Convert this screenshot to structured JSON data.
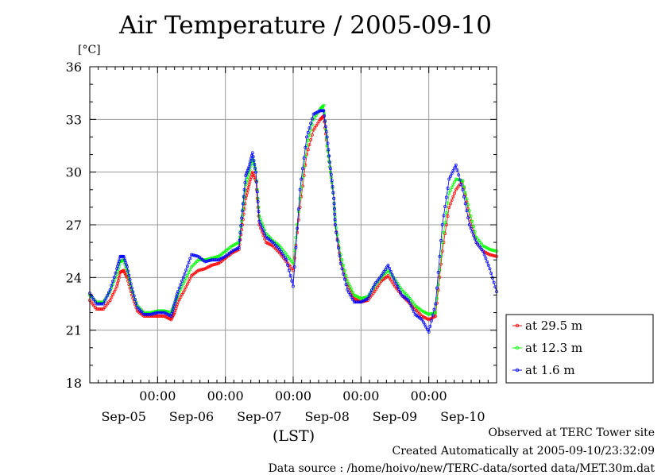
{
  "title": "Air Temperature / 2005-09-10",
  "unit_label": "[°C]",
  "xlabel": "(LST)",
  "footer": {
    "line1": "Observed at TERC Tower site",
    "line2": "Created Automatically at 2005-09-10/23:32:09",
    "line3": "Data source : /home/hoivo/new/TERC-data/sorted  data/MET.30m.dat"
  },
  "chart_data": {
    "type": "line",
    "title": "Air Temperature / 2005-09-10",
    "xlabel": "(LST)",
    "ylabel": "[°C]",
    "ylim": [
      18,
      36
    ],
    "yticks": [
      18,
      21,
      24,
      27,
      30,
      33,
      36
    ],
    "xlim_days": [
      0,
      6
    ],
    "day_labels": [
      "Sep-05",
      "Sep-06",
      "Sep-07",
      "Sep-08",
      "Sep-09",
      "Sep-10"
    ],
    "midnight_labels": [
      "00:00",
      "00:00",
      "00:00",
      "00:00",
      "00:00"
    ],
    "grid": true,
    "legend_position": "right",
    "series": [
      {
        "name": "at 29.5 m",
        "color": "#ff0000",
        "x": [
          0.0,
          0.1,
          0.2,
          0.3,
          0.4,
          0.45,
          0.5,
          0.55,
          0.62,
          0.7,
          0.8,
          0.9,
          1.0,
          1.1,
          1.2,
          1.25,
          1.3,
          1.4,
          1.5,
          1.6,
          1.7,
          1.8,
          1.9,
          2.0,
          2.1,
          2.2,
          2.25,
          2.3,
          2.35,
          2.4,
          2.45,
          2.5,
          2.6,
          2.7,
          2.8,
          2.9,
          3.0,
          3.1,
          3.2,
          3.3,
          3.4,
          3.45,
          3.5,
          3.55,
          3.6,
          3.62,
          3.7,
          3.8,
          3.9,
          4.0,
          4.1,
          4.2,
          4.3,
          4.4,
          4.5,
          4.6,
          4.7,
          4.8,
          4.9,
          5.0,
          5.1,
          5.2,
          5.3,
          5.4,
          5.5,
          5.6,
          5.7,
          5.8,
          5.9,
          6.0
        ],
        "values": [
          22.7,
          22.2,
          22.2,
          22.7,
          23.5,
          24.3,
          24.4,
          24.0,
          23.0,
          22.1,
          21.8,
          21.8,
          21.8,
          21.8,
          21.6,
          22.0,
          22.6,
          23.3,
          24.1,
          24.4,
          24.5,
          24.7,
          24.8,
          25.1,
          25.4,
          25.6,
          27.0,
          28.5,
          29.3,
          30.0,
          29.5,
          27.0,
          26.0,
          25.8,
          25.4,
          24.9,
          24.4,
          28.0,
          31.0,
          32.4,
          33.0,
          33.2,
          31.5,
          30.0,
          28.5,
          27.0,
          25.0,
          23.6,
          22.8,
          22.6,
          22.7,
          23.2,
          23.8,
          24.1,
          23.5,
          23.0,
          22.6,
          22.2,
          21.8,
          21.6,
          21.8,
          25.5,
          28.0,
          29.0,
          29.5,
          27.5,
          26.0,
          25.5,
          25.3,
          25.2
        ]
      },
      {
        "name": "at 12.3 m",
        "color": "#00ff00",
        "x": [
          0.0,
          0.1,
          0.2,
          0.3,
          0.4,
          0.45,
          0.5,
          0.55,
          0.62,
          0.7,
          0.8,
          0.9,
          1.0,
          1.1,
          1.2,
          1.25,
          1.3,
          1.4,
          1.5,
          1.6,
          1.7,
          1.8,
          1.9,
          2.0,
          2.1,
          2.2,
          2.25,
          2.3,
          2.35,
          2.4,
          2.45,
          2.5,
          2.6,
          2.7,
          2.8,
          2.9,
          3.0,
          3.1,
          3.2,
          3.3,
          3.4,
          3.45,
          3.5,
          3.55,
          3.6,
          3.62,
          3.7,
          3.8,
          3.9,
          4.0,
          4.1,
          4.2,
          4.3,
          4.4,
          4.5,
          4.6,
          4.7,
          4.8,
          4.9,
          5.0,
          5.1,
          5.2,
          5.3,
          5.4,
          5.5,
          5.6,
          5.7,
          5.8,
          5.9,
          6.0
        ],
        "values": [
          23.0,
          22.6,
          22.6,
          23.2,
          24.2,
          24.9,
          25.0,
          24.4,
          23.3,
          22.4,
          22.0,
          22.0,
          22.1,
          22.1,
          22.0,
          22.5,
          23.0,
          23.8,
          24.6,
          25.0,
          25.0,
          25.1,
          25.2,
          25.5,
          25.8,
          26.0,
          27.5,
          29.3,
          30.0,
          30.8,
          30.0,
          27.5,
          26.5,
          26.1,
          25.8,
          25.3,
          24.8,
          28.5,
          31.5,
          33.0,
          33.6,
          33.8,
          31.5,
          30.0,
          28.5,
          27.2,
          25.3,
          23.8,
          23.0,
          22.8,
          22.9,
          23.5,
          24.0,
          24.4,
          23.9,
          23.3,
          22.9,
          22.4,
          22.1,
          21.9,
          22.0,
          26.0,
          28.8,
          29.6,
          29.5,
          27.8,
          26.3,
          25.8,
          25.6,
          25.5
        ]
      },
      {
        "name": "at 1.6 m",
        "color": "#0000ff",
        "x": [
          0.0,
          0.1,
          0.2,
          0.3,
          0.4,
          0.45,
          0.5,
          0.55,
          0.62,
          0.7,
          0.8,
          0.9,
          1.0,
          1.1,
          1.2,
          1.25,
          1.3,
          1.4,
          1.5,
          1.6,
          1.7,
          1.8,
          1.9,
          2.0,
          2.1,
          2.2,
          2.25,
          2.3,
          2.35,
          2.4,
          2.45,
          2.5,
          2.6,
          2.7,
          2.8,
          2.9,
          3.0,
          3.1,
          3.2,
          3.3,
          3.4,
          3.45,
          3.5,
          3.55,
          3.6,
          3.62,
          3.7,
          3.8,
          3.9,
          4.0,
          4.1,
          4.2,
          4.3,
          4.4,
          4.5,
          4.6,
          4.7,
          4.8,
          4.9,
          5.0,
          5.1,
          5.2,
          5.3,
          5.4,
          5.5,
          5.6,
          5.7,
          5.8,
          5.9,
          6.0
        ],
        "values": [
          23.1,
          22.5,
          22.5,
          23.3,
          24.5,
          25.2,
          25.2,
          24.6,
          23.4,
          22.3,
          21.9,
          21.9,
          22.0,
          22.0,
          21.8,
          22.5,
          23.2,
          24.2,
          25.3,
          25.2,
          24.9,
          25.0,
          25.0,
          25.2,
          25.5,
          25.7,
          27.8,
          29.8,
          30.3,
          31.1,
          30.0,
          27.2,
          26.3,
          26.0,
          25.6,
          25.0,
          23.5,
          29.0,
          32.0,
          33.3,
          33.5,
          33.5,
          32.0,
          30.2,
          28.5,
          27.0,
          24.8,
          23.3,
          22.6,
          22.6,
          22.8,
          23.6,
          24.1,
          24.7,
          23.8,
          23.0,
          22.7,
          21.9,
          21.6,
          20.9,
          22.5,
          27.0,
          29.6,
          30.4,
          29.0,
          27.0,
          26.0,
          25.5,
          24.5,
          23.2
        ]
      }
    ]
  }
}
